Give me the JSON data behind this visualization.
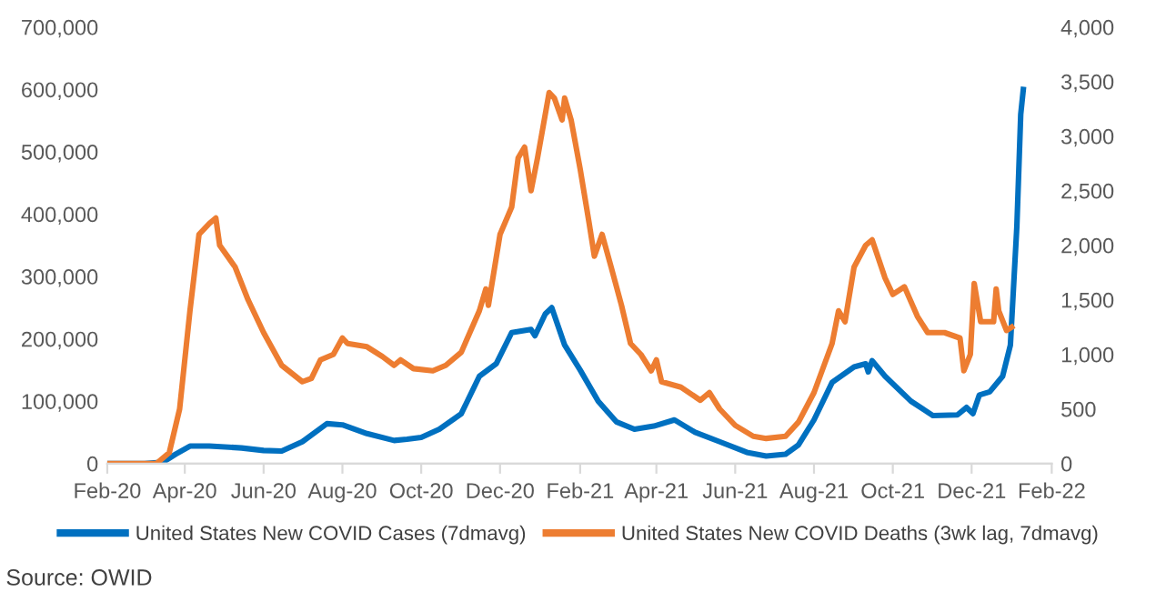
{
  "chart_data": {
    "type": "line",
    "legend": "bottom",
    "grid": false,
    "xlim": [
      "2020-02-01",
      "2022-02-01"
    ],
    "xticks": [
      {
        "value": "2020-02-01",
        "label": "Feb-20"
      },
      {
        "value": "2020-04-01",
        "label": "Apr-20"
      },
      {
        "value": "2020-06-01",
        "label": "Jun-20"
      },
      {
        "value": "2020-08-01",
        "label": "Aug-20"
      },
      {
        "value": "2020-10-01",
        "label": "Oct-20"
      },
      {
        "value": "2020-12-01",
        "label": "Dec-20"
      },
      {
        "value": "2021-02-01",
        "label": "Feb-21"
      },
      {
        "value": "2021-04-01",
        "label": "Apr-21"
      },
      {
        "value": "2021-06-01",
        "label": "Jun-21"
      },
      {
        "value": "2021-08-01",
        "label": "Aug-21"
      },
      {
        "value": "2021-10-01",
        "label": "Oct-21"
      },
      {
        "value": "2021-12-01",
        "label": "Dec-21"
      },
      {
        "value": "2022-02-01",
        "label": "Feb-22"
      }
    ],
    "ylim": [
      0,
      700000
    ],
    "yticks": [
      {
        "value": 0,
        "label": "0"
      },
      {
        "value": 100000,
        "label": "100,000"
      },
      {
        "value": 200000,
        "label": "200,000"
      },
      {
        "value": 300000,
        "label": "300,000"
      },
      {
        "value": 400000,
        "label": "400,000"
      },
      {
        "value": 500000,
        "label": "500,000"
      },
      {
        "value": 600000,
        "label": "600,000"
      },
      {
        "value": 700000,
        "label": "700,000"
      }
    ],
    "y2lim": [
      0,
      4000
    ],
    "y2ticks": [
      {
        "value": 0,
        "label": "0"
      },
      {
        "value": 500,
        "label": "500"
      },
      {
        "value": 1000,
        "label": "1,000"
      },
      {
        "value": 1500,
        "label": "1,500"
      },
      {
        "value": 2000,
        "label": "2,000"
      },
      {
        "value": 2500,
        "label": "2,500"
      },
      {
        "value": 3000,
        "label": "3,000"
      },
      {
        "value": 3500,
        "label": "3,500"
      },
      {
        "value": 4000,
        "label": "4,000"
      }
    ],
    "annotations": [
      "Source: OWID"
    ],
    "series": [
      {
        "name": "United States New COVID Cases (7dmavg)",
        "color": "#0070c0",
        "x": [
          "2020-02-01",
          "2020-03-01",
          "2020-03-15",
          "2020-03-25",
          "2020-04-05",
          "2020-04-20",
          "2020-05-15",
          "2020-06-01",
          "2020-06-15",
          "2020-07-01",
          "2020-07-20",
          "2020-08-01",
          "2020-08-20",
          "2020-09-10",
          "2020-09-20",
          "2020-10-01",
          "2020-10-15",
          "2020-11-01",
          "2020-11-15",
          "2020-11-28",
          "2020-12-10",
          "2020-12-25",
          "2020-12-28",
          "2021-01-05",
          "2021-01-10",
          "2021-01-20",
          "2021-02-01",
          "2021-02-15",
          "2021-03-01",
          "2021-03-15",
          "2021-03-30",
          "2021-04-15",
          "2021-05-01",
          "2021-05-20",
          "2021-06-10",
          "2021-06-25",
          "2021-07-10",
          "2021-07-20",
          "2021-08-01",
          "2021-08-15",
          "2021-09-01",
          "2021-09-10",
          "2021-09-12",
          "2021-09-15",
          "2021-09-25",
          "2021-10-15",
          "2021-11-01",
          "2021-11-20",
          "2021-11-27",
          "2021-12-02",
          "2021-12-07",
          "2021-12-15",
          "2021-12-25",
          "2021-12-31",
          "2022-01-05",
          "2022-01-08",
          "2022-01-10"
        ],
        "values": [
          0,
          0,
          2000,
          15000,
          28000,
          28000,
          25000,
          21000,
          20000,
          35000,
          64000,
          62000,
          48000,
          37000,
          39000,
          42000,
          55000,
          80000,
          140000,
          160000,
          210000,
          215000,
          205000,
          240000,
          250000,
          190000,
          150000,
          100000,
          67000,
          55000,
          60000,
          70000,
          50000,
          35000,
          18000,
          12000,
          15000,
          30000,
          70000,
          130000,
          155000,
          160000,
          147000,
          165000,
          140000,
          100000,
          77000,
          78000,
          90000,
          80000,
          110000,
          115000,
          140000,
          190000,
          380000,
          560000,
          600000
        ]
      },
      {
        "name": "United States New COVID Deaths (3wk lag, 7dmavg)",
        "color": "#ed7d31",
        "axis": "y2",
        "x": [
          "2020-02-01",
          "2020-03-10",
          "2020-03-20",
          "2020-03-28",
          "2020-04-05",
          "2020-04-12",
          "2020-04-20",
          "2020-04-25",
          "2020-04-28",
          "2020-05-10",
          "2020-05-20",
          "2020-06-01",
          "2020-06-15",
          "2020-07-01",
          "2020-07-08",
          "2020-07-15",
          "2020-07-25",
          "2020-08-01",
          "2020-08-05",
          "2020-08-20",
          "2020-09-01",
          "2020-09-10",
          "2020-09-15",
          "2020-09-25",
          "2020-10-10",
          "2020-10-20",
          "2020-11-01",
          "2020-11-15",
          "2020-11-20",
          "2020-11-22",
          "2020-12-01",
          "2020-12-10",
          "2020-12-15",
          "2020-12-20",
          "2020-12-25",
          "2020-12-30",
          "2021-01-08",
          "2021-01-12",
          "2021-01-18",
          "2021-01-20",
          "2021-01-25",
          "2021-02-01",
          "2021-02-08",
          "2021-02-12",
          "2021-02-18",
          "2021-02-25",
          "2021-03-05",
          "2021-03-12",
          "2021-03-20",
          "2021-03-28",
          "2021-04-01",
          "2021-04-05",
          "2021-04-20",
          "2021-05-05",
          "2021-05-12",
          "2021-05-20",
          "2021-06-01",
          "2021-06-15",
          "2021-06-25",
          "2021-07-10",
          "2021-07-20",
          "2021-08-01",
          "2021-08-15",
          "2021-08-20",
          "2021-08-25",
          "2021-09-01",
          "2021-09-10",
          "2021-09-15",
          "2021-09-25",
          "2021-10-01",
          "2021-10-10",
          "2021-10-20",
          "2021-10-28",
          "2021-11-10",
          "2021-11-22",
          "2021-11-25",
          "2021-11-30",
          "2021-12-03",
          "2021-12-08",
          "2021-12-18",
          "2021-12-20",
          "2021-12-22",
          "2021-12-28",
          "2022-01-01"
        ],
        "values": [
          0,
          0,
          100,
          500,
          1400,
          2100,
          2200,
          2250,
          2000,
          1800,
          1500,
          1200,
          900,
          750,
          780,
          950,
          1000,
          1150,
          1100,
          1070,
          980,
          900,
          950,
          870,
          850,
          900,
          1020,
          1400,
          1600,
          1450,
          2100,
          2350,
          2800,
          2900,
          2500,
          2800,
          3400,
          3350,
          3150,
          3350,
          3150,
          2700,
          2200,
          1900,
          2100,
          1800,
          1450,
          1100,
          1000,
          850,
          950,
          750,
          700,
          580,
          650,
          500,
          350,
          250,
          230,
          250,
          380,
          650,
          1100,
          1400,
          1300,
          1800,
          2000,
          2050,
          1700,
          1550,
          1620,
          1350,
          1200,
          1200,
          1150,
          850,
          1000,
          1650,
          1300,
          1300,
          1600,
          1400,
          1220,
          1250
        ]
      }
    ]
  }
}
